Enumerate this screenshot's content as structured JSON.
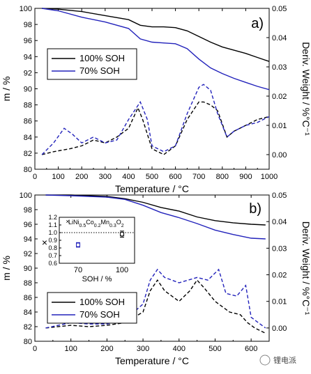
{
  "colors": {
    "soh100": "#000000",
    "soh70": "#2222bb",
    "inset_red": "#cc2222"
  },
  "watermark": "锂电派",
  "chart_data": [
    {
      "type": "line",
      "panel_label": "a)",
      "xlabel": "Temperature / °C",
      "ylabel": "m / %",
      "y2label": "Deriv. Weight / %°C⁻¹",
      "xlim": [
        0,
        1000
      ],
      "ylim": [
        80,
        100
      ],
      "y2lim": [
        -0.005,
        0.05
      ],
      "xticks": [
        "0",
        "100",
        "200",
        "300",
        "400",
        "500",
        "600",
        "700",
        "800",
        "900",
        "1000"
      ],
      "yticks": [
        "80",
        "82",
        "84",
        "86",
        "88",
        "90",
        "92",
        "94",
        "96",
        "98",
        "100"
      ],
      "y2ticks": [
        "0.00",
        "0.01",
        "0.02",
        "0.03",
        "0.04",
        "0.05"
      ],
      "legend": [
        "100% SOH",
        "70% SOH"
      ],
      "legend_position": "left",
      "series": [
        {
          "name": "100% SOH",
          "kind": "mass",
          "x": [
            30,
            100,
            200,
            300,
            400,
            450,
            500,
            550,
            600,
            650,
            700,
            750,
            800,
            850,
            900,
            950,
            1000
          ],
          "y": [
            100,
            99.9,
            99.6,
            99.1,
            98.6,
            97.9,
            97.7,
            97.7,
            97.6,
            97.2,
            96.5,
            95.8,
            95.2,
            94.8,
            94.4,
            93.9,
            93.4
          ]
        },
        {
          "name": "70% SOH",
          "kind": "mass",
          "x": [
            30,
            100,
            200,
            300,
            400,
            450,
            500,
            550,
            600,
            650,
            700,
            750,
            800,
            850,
            900,
            950,
            1000
          ],
          "y": [
            100,
            99.7,
            98.9,
            98.3,
            97.5,
            96.2,
            95.8,
            95.7,
            95.6,
            95.0,
            93.7,
            92.6,
            91.9,
            91.3,
            90.8,
            90.3,
            89.9
          ]
        },
        {
          "name": "100% SOH",
          "kind": "derivative",
          "x": [
            30,
            80,
            150,
            200,
            250,
            300,
            350,
            400,
            440,
            460,
            500,
            550,
            600,
            650,
            700,
            720,
            750,
            780,
            820,
            850,
            900,
            950,
            1000
          ],
          "y": [
            0.0,
            0.001,
            0.002,
            0.003,
            0.005,
            0.004,
            0.006,
            0.009,
            0.016,
            0.012,
            0.002,
            0.0,
            0.003,
            0.012,
            0.018,
            0.018,
            0.017,
            0.015,
            0.006,
            0.008,
            0.01,
            0.012,
            0.013
          ]
        },
        {
          "name": "70% SOH",
          "kind": "derivative",
          "x": [
            30,
            80,
            125,
            160,
            200,
            250,
            300,
            350,
            400,
            450,
            480,
            500,
            550,
            600,
            650,
            700,
            720,
            750,
            780,
            820,
            850,
            900,
            950,
            1000
          ],
          "y": [
            0.0,
            0.004,
            0.009,
            0.007,
            0.004,
            0.006,
            0.004,
            0.005,
            0.012,
            0.018,
            0.012,
            0.003,
            0.001,
            0.003,
            0.014,
            0.023,
            0.024,
            0.022,
            0.014,
            0.006,
            0.008,
            0.01,
            0.011,
            0.013
          ]
        }
      ]
    },
    {
      "type": "line",
      "panel_label": "b)",
      "xlabel": "Temperature / °C",
      "ylabel": "m / %",
      "y2label": "Deriv. Weight / %°C⁻¹",
      "xlim": [
        0,
        650
      ],
      "ylim": [
        80,
        100
      ],
      "y2lim": [
        -0.005,
        0.05
      ],
      "xticks": [
        "0",
        "100",
        "200",
        "300",
        "400",
        "500",
        "600"
      ],
      "yticks": [
        "80",
        "82",
        "84",
        "86",
        "88",
        "90",
        "92",
        "94",
        "96",
        "98",
        "100"
      ],
      "y2ticks": [
        "0.00",
        "0.01",
        "0.02",
        "0.03",
        "0.04",
        "0.05"
      ],
      "legend": [
        "100% SOH",
        "70% SOH"
      ],
      "legend_position": "bottom-left",
      "series": [
        {
          "name": "100% SOH",
          "kind": "mass",
          "x": [
            30,
            100,
            200,
            250,
            300,
            350,
            400,
            450,
            500,
            550,
            600,
            640
          ],
          "y": [
            100,
            100,
            99.8,
            99.5,
            99.0,
            98.3,
            97.8,
            97.0,
            96.5,
            96.2,
            96.0,
            95.9
          ]
        },
        {
          "name": "70% SOH",
          "kind": "mass",
          "x": [
            30,
            100,
            200,
            250,
            300,
            350,
            400,
            450,
            500,
            550,
            600,
            640
          ],
          "y": [
            100,
            99.9,
            99.7,
            99.4,
            98.6,
            97.6,
            96.9,
            96.1,
            95.2,
            94.6,
            94.1,
            94.0
          ]
        },
        {
          "name": "100% SOH",
          "kind": "derivative",
          "x": [
            30,
            100,
            150,
            200,
            250,
            300,
            320,
            340,
            360,
            400,
            430,
            450,
            470,
            500,
            540,
            570,
            590,
            610,
            640
          ],
          "y": [
            0.0,
            0.001,
            0.0005,
            0.001,
            0.002,
            0.006,
            0.014,
            0.018,
            0.014,
            0.01,
            0.014,
            0.018,
            0.015,
            0.01,
            0.006,
            0.005,
            0.002,
            0.0,
            -0.002
          ]
        },
        {
          "name": "70% SOH",
          "kind": "derivative",
          "x": [
            30,
            100,
            150,
            200,
            250,
            300,
            320,
            340,
            360,
            400,
            450,
            480,
            510,
            530,
            560,
            585,
            600,
            620,
            640
          ],
          "y": [
            0.0,
            0.002,
            0.0015,
            0.0015,
            0.003,
            0.009,
            0.018,
            0.022,
            0.019,
            0.017,
            0.019,
            0.018,
            0.022,
            0.013,
            0.012,
            0.016,
            0.004,
            0.002,
            0.0
          ]
        }
      ],
      "inset": {
        "title_parts": [
          {
            "t": "Li",
            "sub": false
          },
          {
            "t": "Ni",
            "sub": false
          },
          {
            "t": "0.5",
            "sub": true
          },
          {
            "t": "Co",
            "sub": false
          },
          {
            "t": "0.2",
            "sub": true
          },
          {
            "t": "Mn",
            "sub": false
          },
          {
            "t": "0.3",
            "sub": true
          },
          {
            "t": "O",
            "sub": false
          },
          {
            "t": "2",
            "sub": true
          }
        ],
        "xlabel": "SOH / %",
        "xticks": [
          "70",
          "100"
        ],
        "yticks": [
          "0.6",
          "0.7",
          "0.8",
          "0.9",
          "1.0",
          "1.1",
          "1.2"
        ],
        "ylim": [
          0.6,
          1.2
        ],
        "reference_line": 1.0,
        "points": [
          {
            "x": "70",
            "y": 0.84,
            "err": 0.03,
            "color": "#2222bb"
          },
          {
            "x": "100",
            "y": 0.98,
            "err": 0.04,
            "color": "#000000"
          }
        ]
      }
    }
  ]
}
